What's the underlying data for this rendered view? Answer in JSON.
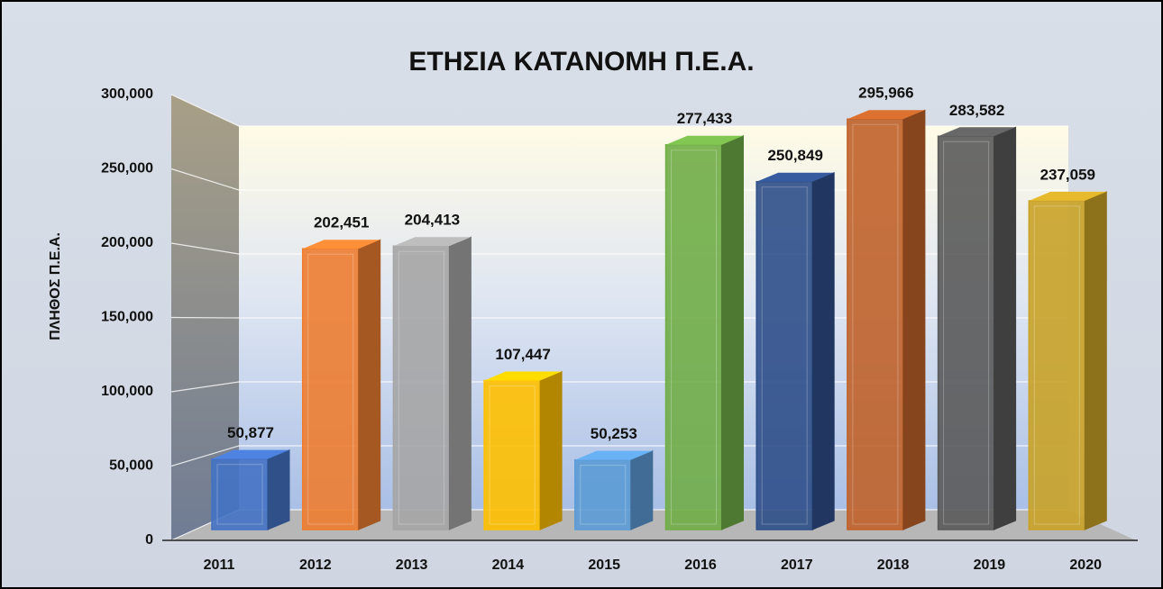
{
  "chart_data": {
    "type": "bar3d",
    "title": "ΕΤΗΣΙΑ ΚΑΤΑΝΟΜΗ Π.Ε.Α.",
    "y_label": "ΠΛΗΘΟΣ Π.Ε.Α.",
    "categories": [
      "2011",
      "2012",
      "2013",
      "2014",
      "2015",
      "2016",
      "2017",
      "2018",
      "2019",
      "2020"
    ],
    "values": [
      50877,
      202451,
      204413,
      107447,
      50253,
      277433,
      250849,
      295966,
      283582,
      237059
    ],
    "value_labels": [
      "50,877",
      "202,451",
      "204,413",
      "107,447",
      "50,253",
      "277,433",
      "250,849",
      "295,966",
      "283,582",
      "237,059"
    ],
    "colors": [
      "#4472c4",
      "#ed7d31",
      "#a5a5a5",
      "#ffc000",
      "#5b9bd5",
      "#70ad47",
      "#2f4f8a",
      "#c0622a",
      "#5a5a5a",
      "#c9a227"
    ],
    "ylim": [
      0,
      300000
    ],
    "yticks": [
      0,
      {
        "value": 50000,
        "label": "50,000"
      },
      {
        "value": 100000,
        "label": "100,000"
      },
      {
        "value": 150000,
        "label": "150,000"
      },
      {
        "value": 200000,
        "label": "200,000"
      },
      {
        "value": 250000,
        "label": "250,000"
      },
      {
        "value": 300000,
        "label": "300,000"
      }
    ],
    "grid": true
  }
}
